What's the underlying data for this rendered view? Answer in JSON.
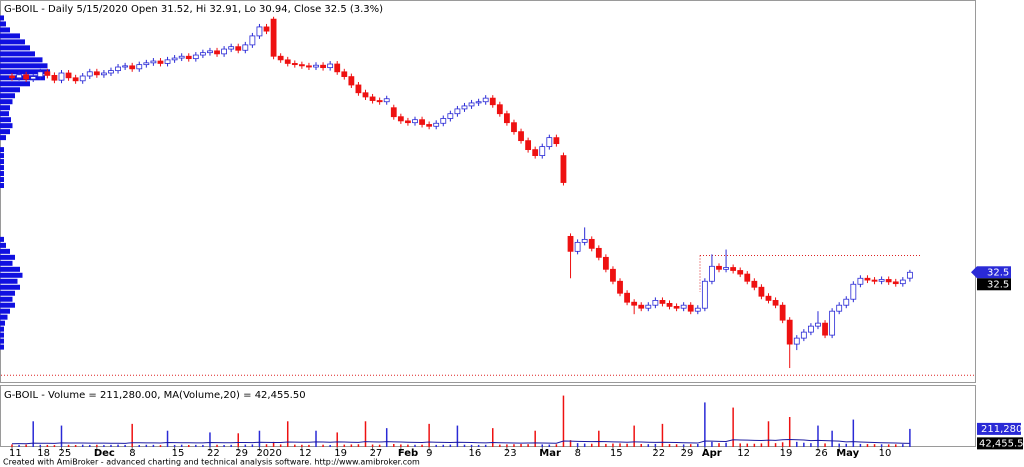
{
  "chart_data": [
    {
      "type": "candlestick",
      "title": "G-BOIL - Daily 5/15/2020 Open 31.52, Hi 32.91, Lo 30.94, Close 32.5 (3.3%)",
      "categories": [
        "11",
        null,
        null,
        null,
        "18",
        null,
        null,
        "25",
        null,
        null,
        null,
        null,
        "Dec",
        null,
        null,
        null,
        null,
        "8",
        null,
        null,
        null,
        null,
        null,
        "15",
        null,
        null,
        null,
        null,
        "22",
        null,
        null,
        null,
        "29",
        null,
        null,
        "2020",
        null,
        null,
        null,
        null,
        null,
        "12",
        null,
        null,
        null,
        null,
        "19",
        null,
        null,
        null,
        null,
        "27",
        null,
        null,
        null,
        "Feb",
        null,
        null,
        null,
        "9",
        null,
        null,
        null,
        null,
        null,
        "16",
        null,
        null,
        null,
        null,
        "23",
        null,
        null,
        null,
        null,
        "Mar",
        null,
        null,
        null,
        null,
        "8",
        null,
        null,
        null,
        null,
        "15",
        null,
        null,
        null,
        null,
        null,
        "22",
        null,
        null,
        null,
        "29",
        null,
        null,
        "Apr",
        null,
        null,
        null,
        null,
        "12",
        null,
        null,
        null,
        null,
        null,
        "19",
        null,
        null,
        null,
        null,
        "26",
        null,
        null,
        "May",
        null,
        null,
        null,
        null,
        null,
        "10",
        null,
        null,
        null,
        null
      ],
      "open": [
        65.3,
        65,
        65.5,
        64.8,
        65.2,
        66,
        65.4,
        64.6,
        65.8,
        65,
        64.5,
        65.3,
        66,
        65.5,
        65.8,
        66.2,
        66.8,
        67,
        66.5,
        67.2,
        67.5,
        67.8,
        67.4,
        68,
        68.3,
        68.6,
        68.2,
        68.8,
        69.2,
        69.5,
        69,
        69.8,
        70.2,
        69.6,
        70.5,
        72,
        73.5,
        74.8,
        68.6,
        68,
        67.4,
        67.2,
        67,
        66.8,
        67.1,
        66.7,
        67.3,
        66,
        65.2,
        63.8,
        62.5,
        61.8,
        61.2,
        61,
        60,
        58.5,
        57.8,
        57.5,
        58,
        57.2,
        56.9,
        57.4,
        58.2,
        59,
        59.8,
        60.3,
        60.8,
        61,
        61.6,
        60.5,
        59,
        57.5,
        56,
        54.5,
        53,
        52,
        53.5,
        55,
        52,
        38.5,
        36,
        37.5,
        38,
        36.5,
        35,
        33,
        31,
        29,
        27.5,
        27,
        26.5,
        27,
        27.8,
        27.3,
        26.8,
        26.5,
        27,
        26,
        26.5,
        31,
        33.5,
        33,
        33.3,
        32.8,
        32.2,
        31,
        30,
        28.5,
        27.8,
        27,
        24.5,
        20.5,
        21.5,
        22.5,
        23.5,
        24,
        22,
        26,
        27,
        28,
        30.5,
        31.5,
        31.2,
        31,
        31.3,
        30.9,
        30.6,
        31.52
      ],
      "high": [
        65.8,
        66,
        66,
        65.7,
        66.5,
        66.5,
        65.9,
        66.3,
        66.3,
        65.5,
        65.8,
        66.5,
        66.5,
        66.3,
        66.7,
        67.3,
        67.5,
        67.5,
        67.7,
        68,
        68.3,
        68.3,
        68.5,
        68.8,
        69.1,
        69.1,
        69.3,
        69.7,
        70,
        70,
        70.3,
        70.7,
        70.7,
        71,
        72.5,
        74,
        74,
        75.2,
        69.1,
        68.5,
        67.9,
        67.7,
        67.5,
        67.6,
        67.6,
        67.8,
        67.8,
        66.5,
        65.7,
        64.3,
        63,
        62.3,
        61.7,
        62,
        60.5,
        59,
        58.3,
        58.5,
        58.5,
        57.7,
        57.9,
        58.7,
        59.5,
        60.3,
        60.8,
        61.3,
        61.5,
        62.1,
        62.1,
        61,
        59.5,
        58,
        56.5,
        55,
        53.5,
        54,
        55.5,
        55.5,
        52.5,
        39,
        38,
        40,
        38.5,
        37,
        35.5,
        33.5,
        31.5,
        29.5,
        28,
        27.5,
        27.5,
        28.3,
        28.3,
        27.8,
        27.3,
        27.5,
        27.5,
        27,
        31.5,
        35.5,
        34,
        36.3,
        33.8,
        33.3,
        32.7,
        31.5,
        30.5,
        29,
        28.3,
        27.5,
        25,
        22,
        23,
        24,
        26,
        24.5,
        26.5,
        27.5,
        28.5,
        31,
        32,
        32,
        31.7,
        31.8,
        31.8,
        31.4,
        31.7,
        32.91
      ],
      "low": [
        64.5,
        64.5,
        64.3,
        64.3,
        64.7,
        64.9,
        64.1,
        64.1,
        64.5,
        64,
        64,
        64.8,
        65,
        65,
        65.3,
        65.7,
        66.3,
        66,
        66,
        66.7,
        67,
        66.9,
        66.9,
        67.5,
        67.8,
        67.7,
        67.7,
        68.3,
        68.7,
        68.5,
        68.5,
        69.3,
        69.1,
        69.1,
        70,
        71.5,
        72.3,
        68.1,
        67.5,
        66.9,
        66.7,
        66.5,
        66.3,
        66.3,
        66.2,
        66.2,
        65.5,
        64.7,
        63.3,
        62,
        61.3,
        60.7,
        60.5,
        60.5,
        58,
        57.3,
        57,
        57,
        56.7,
        56.4,
        56.4,
        56.9,
        57.7,
        58.5,
        59.3,
        59.8,
        60.3,
        60.5,
        60,
        58.5,
        57,
        55.5,
        54,
        52.5,
        51.5,
        51.5,
        53,
        53.5,
        47,
        31.5,
        35.5,
        37,
        36,
        34.5,
        32.5,
        30.5,
        28.5,
        27,
        25.5,
        26,
        26,
        26.5,
        26.8,
        26.3,
        26,
        26,
        25.5,
        25.5,
        26,
        30.5,
        32.5,
        32.5,
        32.3,
        31.7,
        30.5,
        29.5,
        28,
        27.3,
        26.5,
        24,
        16.5,
        19.5,
        21,
        22,
        23,
        21.5,
        21.5,
        25.5,
        26.5,
        27.5,
        30,
        30.7,
        30.5,
        30.5,
        30.4,
        30.1,
        30.1,
        30.94
      ],
      "close": [
        65,
        65.5,
        64.8,
        65.2,
        66,
        65.4,
        64.6,
        65.8,
        65,
        64.5,
        65.3,
        66,
        65.5,
        65.8,
        66.2,
        66.8,
        67,
        66.5,
        67.2,
        67.5,
        67.8,
        67.4,
        68,
        68.3,
        68.6,
        68.2,
        68.8,
        69.2,
        69.5,
        69,
        69.8,
        70.2,
        69.6,
        70.5,
        72,
        73.5,
        72.8,
        68.6,
        68,
        67.4,
        67.2,
        67,
        66.8,
        67.1,
        66.7,
        67.3,
        66,
        65.2,
        63.8,
        62.5,
        61.8,
        61.2,
        61,
        61.5,
        58.5,
        57.8,
        57.5,
        58,
        57.2,
        56.9,
        57.4,
        58.2,
        59,
        59.8,
        60.3,
        60.8,
        61,
        61.6,
        60.5,
        59,
        57.5,
        56,
        54.5,
        53,
        52,
        53.5,
        55,
        54,
        47.5,
        36,
        37.5,
        38,
        36.5,
        35,
        33,
        31,
        29,
        27.5,
        27,
        26.5,
        27,
        27.8,
        27.3,
        26.8,
        26.5,
        27,
        26,
        26.5,
        31,
        33.5,
        33,
        33.3,
        32.8,
        32.2,
        31,
        30,
        28.5,
        27.8,
        27,
        24.5,
        20.5,
        21.5,
        22.5,
        23.5,
        24,
        22,
        26,
        27,
        28,
        30.5,
        31.5,
        31.2,
        31,
        31.3,
        30.9,
        30.6,
        31.2,
        32.5
      ],
      "last_label": "32.5",
      "ylim": [
        14,
        78
      ],
      "up_color": "#2a2ad6",
      "down_color": "#ee1111",
      "profile": {
        "prices": [
          75,
          74,
          73,
          72,
          71,
          70,
          69,
          68,
          67,
          66,
          65,
          64,
          63,
          62,
          61,
          60,
          59,
          58,
          57,
          56,
          55,
          53,
          52,
          51,
          50,
          49,
          48,
          47,
          38,
          37,
          36,
          35,
          34,
          33,
          32,
          31,
          30,
          29,
          28,
          27,
          26,
          25,
          24,
          23,
          22,
          21,
          20
        ],
        "values": [
          8,
          12,
          20,
          40,
          50,
          60,
          70,
          85,
          95,
          100,
          90,
          60,
          40,
          30,
          25,
          20,
          18,
          22,
          25,
          20,
          12,
          8,
          8,
          8,
          8,
          8,
          8,
          8,
          8,
          12,
          20,
          30,
          25,
          40,
          45,
          35,
          40,
          30,
          25,
          30,
          20,
          15,
          10,
          8,
          8,
          8,
          8
        ],
        "xlim": [
          0,
          100
        ],
        "color": "#1010e0"
      },
      "hlines": [
        35.3,
        15.3
      ],
      "hline_color": "#dd2222"
    },
    {
      "type": "bar",
      "title": "G-BOIL - Volume = 211,280.00, MA(Volume,20) = 42,455.50",
      "values": [
        30000,
        25000,
        28000,
        300000,
        26000,
        24000,
        22000,
        250000,
        25000,
        23000,
        27000,
        24000,
        26000,
        22000,
        25000,
        28000,
        24000,
        270000,
        23000,
        26000,
        25000,
        22000,
        190000,
        24000,
        27000,
        23000,
        25000,
        24000,
        170000,
        26000,
        23000,
        25000,
        160000,
        28000,
        30000,
        190000,
        32000,
        60000,
        30000,
        300000,
        28000,
        26000,
        25000,
        190000,
        27000,
        24000,
        170000,
        28000,
        30000,
        32000,
        300000,
        29000,
        27000,
        220000,
        35000,
        30000,
        28000,
        26000,
        27000,
        270000,
        25000,
        26000,
        28000,
        250000,
        27000,
        25000,
        24000,
        26000,
        220000,
        28000,
        30000,
        32000,
        35000,
        33000,
        190000,
        30000,
        28000,
        32000,
        600000,
        80000,
        45000,
        40000,
        38000,
        190000,
        36000,
        40000,
        42000,
        38000,
        250000,
        35000,
        33000,
        36000,
        270000,
        34000,
        32000,
        30000,
        33000,
        35000,
        520000,
        60000,
        45000,
        50000,
        460000,
        42000,
        40000,
        38000,
        42000,
        300000,
        45000,
        55000,
        350000,
        60000,
        50000,
        45000,
        250000,
        42000,
        190000,
        40000,
        38000,
        320000,
        36000,
        34000,
        33000,
        32000,
        30000,
        31000,
        33000,
        211280
      ],
      "value_label": "211,280",
      "ma": {
        "color": "#1a1aa0",
        "values": [
          38000,
          39000,
          38500,
          45000,
          44000,
          43500,
          43000,
          48000,
          47000,
          46500,
          46000,
          45500,
          45000,
          44500,
          44000,
          43500,
          43000,
          50000,
          49000,
          48500,
          48000,
          47000,
          52000,
          51000,
          50000,
          49000,
          48000,
          47500,
          52000,
          51000,
          50000,
          49000,
          53000,
          52000,
          51000,
          55000,
          54000,
          53000,
          52000,
          58000,
          57000,
          56000,
          55000,
          60000,
          58000,
          56000,
          60000,
          58000,
          56000,
          54000,
          62000,
          60000,
          58000,
          62000,
          60000,
          58000,
          56000,
          54000,
          52000,
          58000,
          56000,
          54000,
          52000,
          56000,
          54000,
          52000,
          50000,
          48000,
          52000,
          50000,
          48000,
          46000,
          45000,
          46000,
          48000,
          46000,
          45000,
          44000,
          70000,
          68000,
          66000,
          64000,
          62000,
          64000,
          62000,
          60000,
          58000,
          56000,
          60000,
          58000,
          56000,
          54000,
          56000,
          54000,
          52000,
          50000,
          48000,
          46000,
          70000,
          68000,
          66000,
          64000,
          85000,
          82000,
          80000,
          78000,
          76000,
          80000,
          78000,
          85000,
          88000,
          85000,
          82000,
          75000,
          78000,
          75000,
          72000,
          68000,
          60000,
          62000,
          58000,
          55000,
          52000,
          50000,
          48000,
          46000,
          44000,
          42455.5
        ],
        "label": "42,455.5"
      },
      "ylim": [
        0,
        700000
      ]
    }
  ],
  "footer": "Created with AmiBroker - advanced charting and technical analysis software. http://www.amibroker.com"
}
